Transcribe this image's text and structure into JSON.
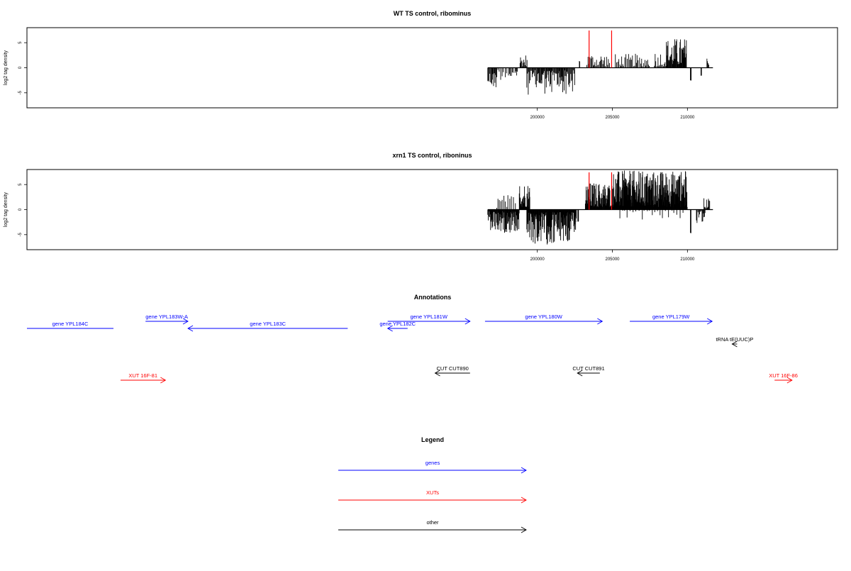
{
  "colors": {
    "gene": "#0000ff",
    "xut": "#ff0000",
    "other": "#000000",
    "marker": "#ff0000",
    "bars": "#000000"
  },
  "chart_data": [
    {
      "type": "bar",
      "title": "WT TS control, ribominus",
      "xlabel": "",
      "ylabel": "log2 tag density",
      "xlim": [
        166000,
        220000
      ],
      "ylim": [
        -8,
        8
      ],
      "x_ticks": [
        "200000",
        "205000",
        "210000"
      ],
      "x_tick_values": [
        200000,
        205000,
        210000
      ],
      "y_ticks": [
        "-5",
        "0",
        "5"
      ],
      "y_tick_values": [
        -5,
        0,
        5
      ],
      "markers": [
        203450,
        204950
      ],
      "segments": [
        {
          "from": 196700,
          "to": 197300,
          "sign": -1,
          "min": 1,
          "max": 4.3,
          "step": 40
        },
        {
          "from": 197300,
          "to": 198200,
          "sign": -1,
          "min": 0.3,
          "max": 2.5,
          "step": 100
        },
        {
          "from": 198200,
          "to": 198700,
          "sign": -1,
          "min": 0.5,
          "max": 2.5,
          "step": 80
        },
        {
          "from": 198850,
          "to": 199350,
          "sign": 1,
          "min": 0.3,
          "max": 2.8,
          "step": 40
        },
        {
          "from": 199300,
          "to": 202500,
          "sign": -1,
          "min": 0.5,
          "max": 5.4,
          "step": 40
        },
        {
          "from": 202800,
          "to": 202830,
          "sign": 1,
          "min": 1.2,
          "max": 1.6,
          "step": 20
        },
        {
          "from": 203300,
          "to": 204850,
          "sign": 1,
          "min": 0.3,
          "max": 3,
          "step": 60
        },
        {
          "from": 205200,
          "to": 207500,
          "sign": 1,
          "min": 0.3,
          "max": 2.8,
          "step": 70
        },
        {
          "from": 207800,
          "to": 208600,
          "sign": 1,
          "min": 0.3,
          "max": 3.5,
          "step": 60
        },
        {
          "from": 208600,
          "to": 209950,
          "sign": 1,
          "min": 0.5,
          "max": 6,
          "step": 30
        },
        {
          "from": 210200,
          "to": 210250,
          "sign": -1,
          "min": 2.5,
          "max": 2.7,
          "step": 30
        },
        {
          "from": 210900,
          "to": 210950,
          "sign": -1,
          "min": 1.5,
          "max": 1.7,
          "step": 30
        },
        {
          "from": 211300,
          "to": 211450,
          "sign": 1,
          "min": 0.6,
          "max": 2.2,
          "step": 60
        }
      ]
    },
    {
      "type": "bar",
      "title": "xrn1 TS control, riboninus",
      "xlabel": "",
      "ylabel": "log2 tag density",
      "xlim": [
        166000,
        220000
      ],
      "ylim": [
        -8,
        8
      ],
      "x_ticks": [
        "200000",
        "205000",
        "210000"
      ],
      "x_tick_values": [
        200000,
        205000,
        210000
      ],
      "y_ticks": [
        "-5",
        "0",
        "5"
      ],
      "y_tick_values": [
        -5,
        0,
        5
      ],
      "markers": [
        203450,
        204950
      ],
      "segments": [
        {
          "from": 196700,
          "to": 198800,
          "sign": -1,
          "min": 0.3,
          "max": 4.7,
          "step": 25
        },
        {
          "from": 197300,
          "to": 198600,
          "sign": 1,
          "min": 0.3,
          "max": 3,
          "step": 110
        },
        {
          "from": 198800,
          "to": 199500,
          "sign": 1,
          "min": 0.5,
          "max": 5.5,
          "step": 20
        },
        {
          "from": 199300,
          "to": 202600,
          "sign": -1,
          "min": 0.5,
          "max": 7,
          "step": 22
        },
        {
          "from": 202700,
          "to": 202750,
          "sign": -1,
          "min": 2.2,
          "max": 2.4,
          "step": 20
        },
        {
          "from": 203200,
          "to": 205000,
          "sign": 1,
          "min": 0.5,
          "max": 5.5,
          "step": 22
        },
        {
          "from": 205000,
          "to": 210000,
          "sign": 1,
          "min": 0.5,
          "max": 7.8,
          "step": 15
        },
        {
          "from": 205500,
          "to": 209800,
          "sign": -1,
          "min": 0.2,
          "max": 2,
          "step": 170
        },
        {
          "from": 210200,
          "to": 210250,
          "sign": -1,
          "min": 4.5,
          "max": 4.8,
          "step": 20
        },
        {
          "from": 210600,
          "to": 211200,
          "sign": -1,
          "min": 0.3,
          "max": 3.5,
          "step": 50
        },
        {
          "from": 211100,
          "to": 211500,
          "sign": 1,
          "min": 0.3,
          "max": 2.6,
          "step": 50
        }
      ]
    }
  ],
  "annotations": {
    "title": "Annotations",
    "features": [
      {
        "label": "gene YPL184C",
        "kind": "gene",
        "row": 1,
        "start": 166000,
        "end": 197000,
        "dir": "none"
      },
      {
        "label": "gene YPL183W-A",
        "kind": "gene",
        "row": 0,
        "start": 198450,
        "end": 199300,
        "dir": "right"
      },
      {
        "label": "gene YPL183C",
        "kind": "gene",
        "row": 1,
        "start": 199300,
        "end": 202500,
        "dir": "left"
      },
      {
        "label": "gene YPL182C",
        "kind": "gene",
        "row": 1,
        "start": 203300,
        "end": 203700,
        "dir": "left"
      },
      {
        "label": "gene YPL181W",
        "kind": "gene",
        "row": 0,
        "start": 203300,
        "end": 204950,
        "dir": "right"
      },
      {
        "label": "gene YPL180W",
        "kind": "gene",
        "row": 0,
        "start": 205250,
        "end": 207600,
        "dir": "right"
      },
      {
        "label": "gene YPL179W",
        "kind": "gene",
        "row": 0,
        "start": 208150,
        "end": 209800,
        "dir": "right"
      },
      {
        "label": "tRNA tE(UUC)P",
        "kind": "other",
        "row": 2,
        "start": 210200,
        "end": 210300,
        "dir": "left"
      },
      {
        "label": "CUT CUT890",
        "kind": "other",
        "row": 3,
        "start": 204250,
        "end": 204950,
        "dir": "left"
      },
      {
        "label": "CUT CUT891",
        "kind": "other",
        "row": 3,
        "start": 207100,
        "end": 207550,
        "dir": "left"
      },
      {
        "label": "XUT 16F-81",
        "kind": "xut",
        "row": 4,
        "start": 197950,
        "end": 198850,
        "dir": "right"
      },
      {
        "label": "XUT 16F-86",
        "kind": "xut",
        "row": 4,
        "start": 211050,
        "end": 211400,
        "dir": "right"
      }
    ]
  },
  "legend": {
    "title": "Legend",
    "entries": [
      {
        "label": "genes",
        "kind": "gene"
      },
      {
        "label": "XUTs",
        "kind": "xut"
      },
      {
        "label": "other",
        "kind": "other"
      }
    ]
  }
}
